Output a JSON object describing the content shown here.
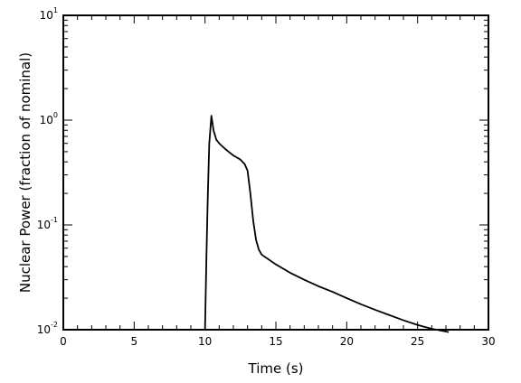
{
  "chart_data": {
    "type": "line",
    "title": "",
    "xlabel": "Time (s)",
    "ylabel": "Nuclear Power (fraction of nominal)",
    "xlim": [
      0,
      30
    ],
    "ylim": [
      0.01,
      10
    ],
    "yscale": "log",
    "grid": false,
    "x_ticks": [
      0,
      5,
      10,
      15,
      20,
      25,
      30
    ],
    "x_tick_labels": [
      "0",
      "5",
      "10",
      "15",
      "20",
      "25",
      "30"
    ],
    "y_ticks": [
      {
        "base": "10",
        "exp": "-2",
        "value": 0.01
      },
      {
        "base": "10",
        "exp": "-1",
        "value": 0.1
      },
      {
        "base": "10",
        "exp": "0",
        "value": 1
      },
      {
        "base": "10",
        "exp": "1",
        "value": 10
      }
    ],
    "series": [
      {
        "color": "#000000",
        "points": [
          [
            10.0,
            0.01
          ],
          [
            10.1,
            0.05
          ],
          [
            10.2,
            0.2
          ],
          [
            10.3,
            0.6
          ],
          [
            10.45,
            1.1
          ],
          [
            10.6,
            0.8
          ],
          [
            10.8,
            0.65
          ],
          [
            11.0,
            0.6
          ],
          [
            11.5,
            0.52
          ],
          [
            12.0,
            0.46
          ],
          [
            12.5,
            0.42
          ],
          [
            12.8,
            0.38
          ],
          [
            13.0,
            0.33
          ],
          [
            13.2,
            0.2
          ],
          [
            13.4,
            0.11
          ],
          [
            13.6,
            0.072
          ],
          [
            13.8,
            0.058
          ],
          [
            14.0,
            0.052
          ],
          [
            15.0,
            0.042
          ],
          [
            16.0,
            0.035
          ],
          [
            17.0,
            0.03
          ],
          [
            18.0,
            0.026
          ],
          [
            19.0,
            0.023
          ],
          [
            20.0,
            0.02
          ],
          [
            21.0,
            0.0175
          ],
          [
            22.0,
            0.0155
          ],
          [
            23.0,
            0.0138
          ],
          [
            24.0,
            0.0123
          ],
          [
            25.0,
            0.0111
          ],
          [
            26.0,
            0.0102
          ],
          [
            27.2,
            0.0095
          ]
        ]
      }
    ]
  }
}
